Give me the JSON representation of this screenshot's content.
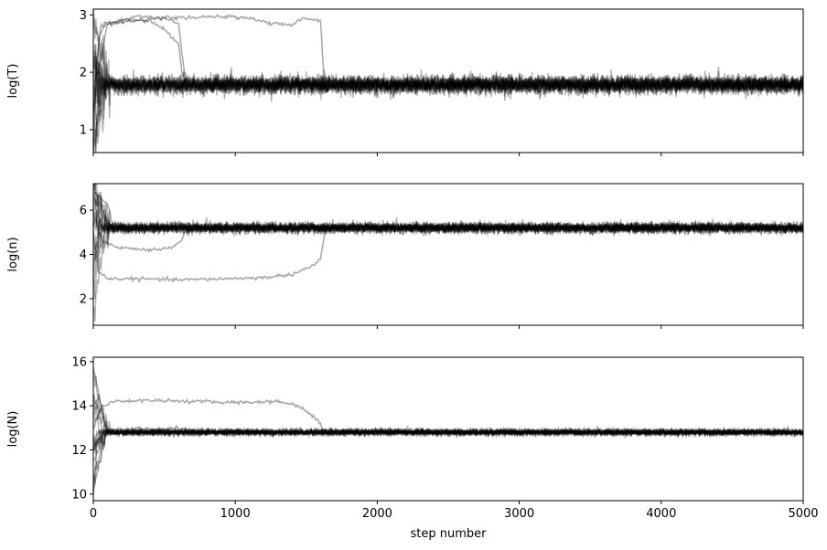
{
  "chart_data": [
    {
      "type": "line",
      "title": "",
      "ylabel": "log(T)",
      "xlabel": "",
      "xlim": [
        0,
        5000
      ],
      "ylim": [
        0.6,
        3.1
      ],
      "yticks": [
        1,
        2,
        3
      ],
      "xticks": [
        0,
        1000,
        2000,
        3000,
        4000,
        5000
      ],
      "show_xticklabels": false,
      "series_color": "#000000",
      "series_alpha": 0.3,
      "converged_band": [
        1.62,
        1.95
      ],
      "converged_center": 1.78,
      "excursions": [
        {
          "points": [
            [
              0,
              1.2
            ],
            [
              40,
              2.6
            ],
            [
              80,
              2.85
            ],
            [
              200,
              2.9
            ],
            [
              300,
              2.98
            ],
            [
              450,
              2.95
            ],
            [
              550,
              2.9
            ],
            [
              600,
              2.85
            ],
            [
              640,
              2.0
            ],
            [
              660,
              1.8
            ],
            [
              5000,
              1.78
            ]
          ]
        },
        {
          "points": [
            [
              0,
              1.6
            ],
            [
              50,
              2.8
            ],
            [
              150,
              2.85
            ],
            [
              300,
              2.9
            ],
            [
              500,
              2.95
            ],
            [
              700,
              2.95
            ],
            [
              900,
              2.97
            ],
            [
              1100,
              2.95
            ],
            [
              1250,
              2.85
            ],
            [
              1400,
              2.82
            ],
            [
              1480,
              2.95
            ],
            [
              1600,
              2.9
            ],
            [
              1620,
              2.1
            ],
            [
              1640,
              1.8
            ],
            [
              5000,
              1.78
            ]
          ]
        },
        {
          "points": [
            [
              0,
              1.3
            ],
            [
              30,
              1.9
            ],
            [
              100,
              2.85
            ],
            [
              250,
              2.92
            ],
            [
              400,
              2.9
            ],
            [
              500,
              2.75
            ],
            [
              600,
              2.5
            ],
            [
              630,
              1.9
            ],
            [
              660,
              1.78
            ],
            [
              5000,
              1.78
            ]
          ]
        }
      ]
    },
    {
      "type": "line",
      "title": "",
      "ylabel": "log(n)",
      "xlabel": "",
      "xlim": [
        0,
        5000
      ],
      "ylim": [
        0.8,
        7.2
      ],
      "yticks": [
        2,
        4,
        6
      ],
      "xticks": [
        0,
        1000,
        2000,
        3000,
        4000,
        5000
      ],
      "show_xticklabels": false,
      "series_color": "#000000",
      "series_alpha": 0.3,
      "converged_band": [
        4.95,
        5.45
      ],
      "converged_center": 5.2,
      "excursions": [
        {
          "points": [
            [
              0,
              5.0
            ],
            [
              40,
              3.2
            ],
            [
              100,
              2.9
            ],
            [
              300,
              2.9
            ],
            [
              600,
              2.85
            ],
            [
              900,
              2.9
            ],
            [
              1200,
              2.95
            ],
            [
              1400,
              3.1
            ],
            [
              1550,
              3.5
            ],
            [
              1600,
              3.8
            ],
            [
              1630,
              4.9
            ],
            [
              1660,
              5.2
            ],
            [
              5000,
              5.2
            ]
          ]
        },
        {
          "points": [
            [
              0,
              6.0
            ],
            [
              60,
              4.6
            ],
            [
              200,
              4.3
            ],
            [
              400,
              4.2
            ],
            [
              550,
              4.3
            ],
            [
              620,
              4.6
            ],
            [
              650,
              5.1
            ],
            [
              700,
              5.2
            ],
            [
              5000,
              5.2
            ]
          ]
        },
        {
          "points": [
            [
              0,
              6.8
            ],
            [
              50,
              6.6
            ],
            [
              100,
              6.3
            ],
            [
              140,
              5.2
            ],
            [
              5000,
              5.2
            ]
          ]
        }
      ]
    },
    {
      "type": "line",
      "title": "",
      "ylabel": "log(N)",
      "xlabel": "step number",
      "xlim": [
        0,
        5000
      ],
      "ylim": [
        9.7,
        16.2
      ],
      "yticks": [
        10,
        12,
        14,
        16
      ],
      "xticks": [
        0,
        1000,
        2000,
        3000,
        4000,
        5000
      ],
      "show_xticklabels": true,
      "series_color": "#000000",
      "series_alpha": 0.3,
      "converged_band": [
        12.65,
        12.95
      ],
      "converged_center": 12.8,
      "excursions": [
        {
          "points": [
            [
              0,
              13.0
            ],
            [
              60,
              14.0
            ],
            [
              150,
              14.2
            ],
            [
              400,
              14.25
            ],
            [
              700,
              14.2
            ],
            [
              1000,
              14.15
            ],
            [
              1300,
              14.2
            ],
            [
              1450,
              14.0
            ],
            [
              1550,
              13.5
            ],
            [
              1600,
              13.2
            ],
            [
              1620,
              12.8
            ],
            [
              5000,
              12.8
            ]
          ]
        },
        {
          "points": [
            [
              0,
              12.0
            ],
            [
              80,
              12.9
            ],
            [
              300,
              12.95
            ],
            [
              600,
              12.95
            ],
            [
              700,
              12.8
            ],
            [
              5000,
              12.8
            ]
          ]
        },
        {
          "points": [
            [
              0,
              15.8
            ],
            [
              40,
              14.5
            ],
            [
              80,
              13.1
            ],
            [
              120,
              12.8
            ],
            [
              5000,
              12.8
            ]
          ]
        }
      ]
    }
  ]
}
